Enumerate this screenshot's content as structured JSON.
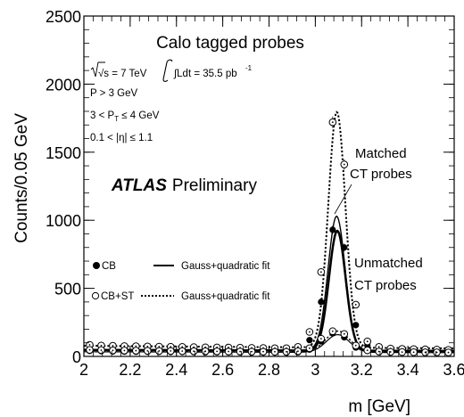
{
  "chart_data": {
    "type": "scatter",
    "xlabel": "m [GeV]",
    "ylabel": "Counts/0.05 GeV",
    "xlim": [
      2,
      3.6
    ],
    "ylim": [
      0,
      2500
    ],
    "xticks": [
      "2",
      "2.2",
      "2.4",
      "2.6",
      "2.8",
      "3",
      "3.2",
      "3.4",
      "3.6"
    ],
    "yticks": [
      "0",
      "500",
      "1000",
      "1500",
      "2000",
      "2500"
    ],
    "title": "Calo tagged probes",
    "experiment": "ATLAS",
    "experiment_status": "Preliminary",
    "cuts": {
      "energy": "√s = 7 TeV",
      "lumi": "∫Ldt = 35.5 pb",
      "lumi_exp": "-1",
      "p_cut": "P > 3 GeV",
      "pt_cut": "3 < P",
      "pt_sub": "T",
      "pt_cut_tail": " ≤ 4 GeV",
      "eta_cut": "0.1 < |η| ≤ 1.1"
    },
    "legend": {
      "cb": "CB",
      "cb_fit": "Gauss+quadratic fit",
      "cbst": "CB+ST",
      "cbst_fit": "Gauss+quadratic fit"
    },
    "annotations": {
      "matched_line1": "Matched",
      "matched_line2": "CT probes",
      "unmatched_line1": "Unmatched",
      "unmatched_line2": "CT probes"
    },
    "series": [
      {
        "name": "CB (matched)",
        "marker": "filled-circle",
        "x": [
          2.025,
          2.075,
          2.125,
          2.175,
          2.225,
          2.275,
          2.325,
          2.375,
          2.425,
          2.475,
          2.525,
          2.575,
          2.625,
          2.675,
          2.725,
          2.775,
          2.825,
          2.875,
          2.925,
          2.975,
          3.025,
          3.075,
          3.125,
          3.175,
          3.225,
          3.275,
          3.325,
          3.375,
          3.425,
          3.475,
          3.525,
          3.575
        ],
        "y": [
          55,
          50,
          52,
          48,
          50,
          48,
          46,
          48,
          45,
          47,
          44,
          46,
          44,
          45,
          43,
          44,
          42,
          44,
          50,
          120,
          400,
          930,
          800,
          230,
          80,
          45,
          38,
          36,
          35,
          34,
          33,
          32
        ]
      },
      {
        "name": "CB+ST (matched)",
        "marker": "open-circle",
        "x": [
          2.025,
          2.075,
          2.125,
          2.175,
          2.225,
          2.275,
          2.325,
          2.375,
          2.425,
          2.475,
          2.525,
          2.575,
          2.625,
          2.675,
          2.725,
          2.775,
          2.825,
          2.875,
          2.925,
          2.975,
          3.025,
          3.075,
          3.125,
          3.175,
          3.225,
          3.275,
          3.325,
          3.375,
          3.425,
          3.475,
          3.525,
          3.575
        ],
        "y": [
          85,
          80,
          78,
          76,
          75,
          73,
          72,
          71,
          70,
          68,
          67,
          66,
          65,
          64,
          63,
          62,
          60,
          60,
          70,
          180,
          620,
          1720,
          1410,
          380,
          110,
          70,
          58,
          55,
          54,
          52,
          50,
          48
        ]
      },
      {
        "name": "CB (unmatched)",
        "marker": "filled-circle",
        "x": [
          2.025,
          2.075,
          2.125,
          2.175,
          2.225,
          2.275,
          2.325,
          2.375,
          2.425,
          2.475,
          2.525,
          2.575,
          2.625,
          2.675,
          2.725,
          2.775,
          2.825,
          2.875,
          2.925,
          2.975,
          3.025,
          3.075,
          3.125,
          3.175,
          3.225,
          3.275,
          3.325,
          3.375,
          3.425,
          3.475,
          3.525,
          3.575
        ],
        "y": [
          40,
          38,
          36,
          35,
          34,
          34,
          33,
          32,
          32,
          31,
          30,
          30,
          29,
          29,
          28,
          28,
          28,
          27,
          30,
          50,
          110,
          170,
          140,
          65,
          40,
          30,
          28,
          27,
          26,
          26,
          25,
          25
        ]
      },
      {
        "name": "CB+ST (unmatched)",
        "marker": "open-circle",
        "x": [
          2.025,
          2.075,
          2.125,
          2.175,
          2.225,
          2.275,
          2.325,
          2.375,
          2.425,
          2.475,
          2.525,
          2.575,
          2.625,
          2.675,
          2.725,
          2.775,
          2.825,
          2.875,
          2.925,
          2.975,
          3.025,
          3.075,
          3.125,
          3.175,
          3.225,
          3.275,
          3.325,
          3.375,
          3.425,
          3.475,
          3.525,
          3.575
        ],
        "y": [
          48,
          46,
          44,
          43,
          42,
          41,
          40,
          40,
          39,
          38,
          38,
          37,
          36,
          36,
          35,
          35,
          34,
          34,
          38,
          60,
          130,
          185,
          165,
          80,
          45,
          36,
          33,
          32,
          31,
          30,
          30,
          29
        ]
      }
    ],
    "fits": [
      {
        "series": "CB (matched)",
        "style": "solid",
        "width": 2.5,
        "amp": 880,
        "mu": 3.095,
        "sigma": 0.036,
        "bg": [
          48,
          -5
        ]
      },
      {
        "series": "CB (matched) alt",
        "style": "solid",
        "width": 1.4,
        "amp": 985,
        "mu": 3.092,
        "sigma": 0.037,
        "bg": [
          50,
          -5
        ]
      },
      {
        "series": "CB+ST (matched)",
        "style": "dotted",
        "width": 2.0,
        "amp": 1730,
        "mu": 3.093,
        "sigma": 0.037,
        "bg": [
          78,
          -12
        ]
      },
      {
        "series": "CB (unmatched)",
        "style": "solid",
        "width": 1.2,
        "amp": 130,
        "mu": 3.097,
        "sigma": 0.05,
        "bg": [
          34,
          -4
        ]
      },
      {
        "series": "CB+ST (unmatched)",
        "style": "dotted",
        "width": 1.4,
        "amp": 150,
        "mu": 3.097,
        "sigma": 0.05,
        "bg": [
          43,
          -6
        ]
      }
    ]
  }
}
